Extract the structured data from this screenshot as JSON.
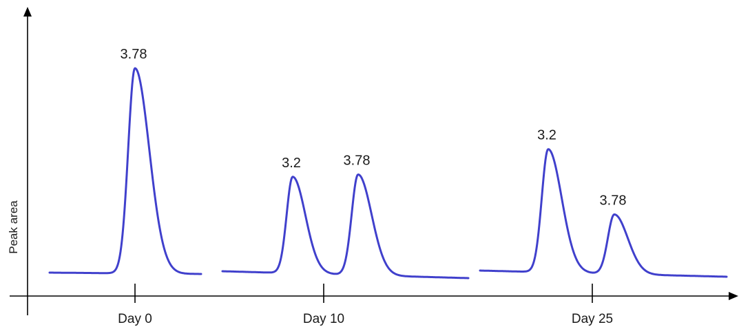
{
  "chart_data": {
    "type": "line",
    "title": "",
    "xlabel": "",
    "ylabel": "Peak area",
    "grid": false,
    "legend": "none",
    "color": "#4040cc",
    "x_ticks": [
      "Day 0",
      "Day 10",
      "Day 25"
    ],
    "groups": [
      {
        "tick": "Day 0",
        "peaks": [
          {
            "label": "3.78",
            "height": 1.0
          }
        ]
      },
      {
        "tick": "Day 10",
        "peaks": [
          {
            "label": "3.2",
            "height": 0.47
          },
          {
            "label": "3.78",
            "height": 0.49
          }
        ]
      },
      {
        "tick": "Day 25",
        "peaks": [
          {
            "label": "3.2",
            "height": 0.6
          },
          {
            "label": "3.78",
            "height": 0.29
          }
        ]
      }
    ]
  }
}
